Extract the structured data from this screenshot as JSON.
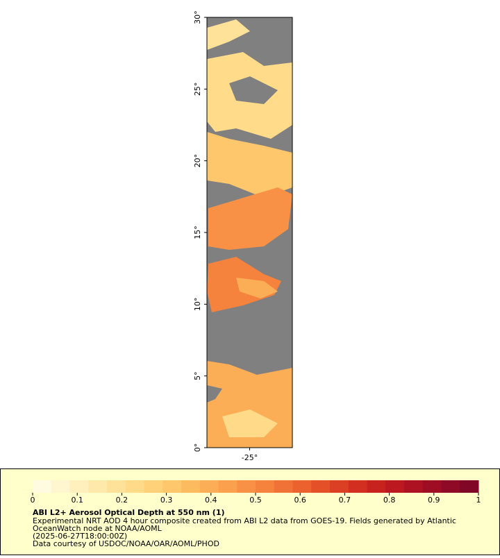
{
  "chart_data": {
    "type": "map",
    "ylim": [
      0,
      30
    ],
    "yticks": [
      {
        "value": 0,
        "label": "0°"
      },
      {
        "value": 5,
        "label": "5°"
      },
      {
        "value": 10,
        "label": "10°"
      },
      {
        "value": 15,
        "label": "15°"
      },
      {
        "value": 20,
        "label": "20°"
      },
      {
        "value": 25,
        "label": "25°"
      },
      {
        "value": 30,
        "label": "30°"
      }
    ],
    "xlim": [
      -28,
      -22
    ],
    "xticks": [
      {
        "value": -25,
        "label": "-25°"
      }
    ],
    "colorbar": {
      "lim": [
        0,
        1
      ],
      "ticks": [
        0,
        0.1,
        0.2,
        0.3,
        0.4,
        0.5,
        0.6,
        0.7,
        0.8,
        0.9,
        1
      ],
      "colors": [
        "#fffbe0",
        "#fff6cf",
        "#fff0bd",
        "#ffe9aa",
        "#ffe299",
        "#ffda88",
        "#ffd178",
        "#fec76b",
        "#fdbb60",
        "#fcae56",
        "#fba04d",
        "#f89145",
        "#f5823d",
        "#f07236",
        "#eb622f",
        "#e45129",
        "#dc4024",
        "#d32f20",
        "#c8221f",
        "#bb1820",
        "#ad1222",
        "#9e0d24",
        "#8f0a27",
        "#800826"
      ]
    },
    "legend": {
      "title": "ABI L2+ Aerosol Optical Depth at 550 nm (1)",
      "lines": [
        "Experimental NRT AOD 4 hour composite created from ABI L2 data from GOES-19. Fields generated by Atlantic",
        "OceanWatch node at NOAA/AOML",
        "(2025-06-27T18:00:00Z)",
        "Data courtesy of USDOC/NOAA/OAR/AOML/PHOD"
      ]
    }
  }
}
